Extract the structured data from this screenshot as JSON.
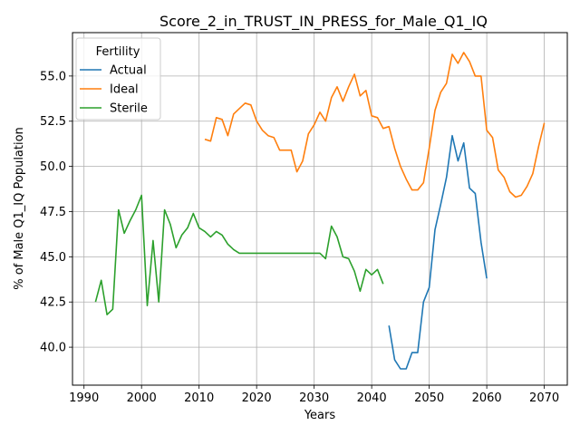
{
  "chart_data": {
    "type": "line",
    "title": "Score_2_in_TRUST_IN_PRESS_for_Male_Q1_IQ",
    "xlabel": "Years",
    "ylabel": "% of Male Q1_IQ Population",
    "xlim": [
      1988,
      2074
    ],
    "ylim": [
      37.9,
      57.4
    ],
    "xticks": [
      1990,
      2000,
      2010,
      2020,
      2030,
      2040,
      2050,
      2060,
      2070
    ],
    "yticks": [
      40.0,
      42.5,
      45.0,
      47.5,
      50.0,
      52.5,
      55.0
    ],
    "xtick_labels": [
      "1990",
      "2000",
      "2010",
      "2020",
      "2030",
      "2040",
      "2050",
      "2060",
      "2070"
    ],
    "ytick_labels": [
      "40.0",
      "42.5",
      "45.0",
      "47.5",
      "50.0",
      "52.5",
      "55.0"
    ],
    "grid": true,
    "legend": {
      "title": "Fertility",
      "placement": "top-left"
    },
    "series": [
      {
        "name": "Actual",
        "color": "#1f77b4",
        "x": [
          2043,
          2044,
          2045,
          2046,
          2047,
          2048,
          2049,
          2050,
          2051,
          2052,
          2053,
          2054,
          2055,
          2056,
          2057,
          2058,
          2059,
          2060
        ],
        "y": [
          41.2,
          39.3,
          38.8,
          38.8,
          39.7,
          39.7,
          42.5,
          43.3,
          46.5,
          47.9,
          49.4,
          51.7,
          50.3,
          51.3,
          48.8,
          48.5,
          45.8,
          43.8
        ]
      },
      {
        "name": "Ideal",
        "color": "#ff7f0e",
        "x": [
          2011,
          2012,
          2013,
          2014,
          2015,
          2016,
          2017,
          2018,
          2019,
          2020,
          2021,
          2022,
          2023,
          2024,
          2025,
          2026,
          2027,
          2028,
          2029,
          2030,
          2031,
          2032,
          2033,
          2034,
          2035,
          2036,
          2037,
          2038,
          2039,
          2040,
          2041,
          2042,
          2043,
          2044,
          2045,
          2046,
          2047,
          2048,
          2049,
          2050,
          2051,
          2052,
          2053,
          2054,
          2055,
          2056,
          2057,
          2058,
          2059,
          2060,
          2061,
          2062,
          2063,
          2064,
          2065,
          2066,
          2067,
          2068,
          2069,
          2070
        ],
        "y": [
          51.5,
          51.4,
          52.7,
          52.6,
          51.7,
          52.9,
          53.2,
          53.5,
          53.4,
          52.5,
          52.0,
          51.7,
          51.6,
          50.9,
          50.9,
          50.9,
          49.7,
          50.3,
          51.8,
          52.3,
          53.0,
          52.5,
          53.8,
          54.4,
          53.6,
          54.4,
          55.1,
          53.9,
          54.2,
          52.8,
          52.7,
          52.1,
          52.2,
          51.0,
          50.0,
          49.3,
          48.7,
          48.7,
          49.1,
          51.0,
          53.1,
          54.1,
          54.6,
          56.2,
          55.7,
          56.3,
          55.8,
          55.0,
          55.0,
          52.0,
          51.6,
          49.8,
          49.4,
          48.6,
          48.3,
          48.4,
          48.9,
          49.6,
          51.1,
          52.4
        ]
      },
      {
        "name": "Sterile",
        "color": "#2ca02c",
        "x": [
          1992,
          1993,
          1994,
          1995,
          1996,
          1997,
          1998,
          1999,
          2000,
          2001,
          2002,
          2003,
          2004,
          2005,
          2006,
          2007,
          2008,
          2009,
          2010,
          2011,
          2012,
          2013,
          2014,
          2015,
          2016,
          2017,
          2018,
          2019,
          2020,
          2021,
          2022,
          2023,
          2024,
          2025,
          2026,
          2027,
          2028,
          2029,
          2030,
          2031,
          2032,
          2033,
          2034,
          2035,
          2036,
          2037,
          2038,
          2039,
          2040,
          2041,
          2042
        ],
        "y": [
          42.5,
          43.7,
          41.8,
          42.1,
          47.6,
          46.3,
          47.0,
          47.6,
          48.4,
          42.3,
          45.9,
          42.5,
          47.6,
          46.8,
          45.5,
          46.2,
          46.6,
          47.4,
          46.6,
          46.4,
          46.1,
          46.4,
          46.2,
          45.7,
          45.4,
          45.2,
          45.2,
          45.2,
          45.2,
          45.2,
          45.2,
          45.2,
          45.2,
          45.2,
          45.2,
          45.2,
          45.2,
          45.2,
          45.2,
          45.2,
          44.9,
          46.7,
          46.1,
          45.0,
          44.9,
          44.2,
          43.1,
          44.3,
          44.0,
          44.3,
          43.5
        ]
      }
    ]
  }
}
